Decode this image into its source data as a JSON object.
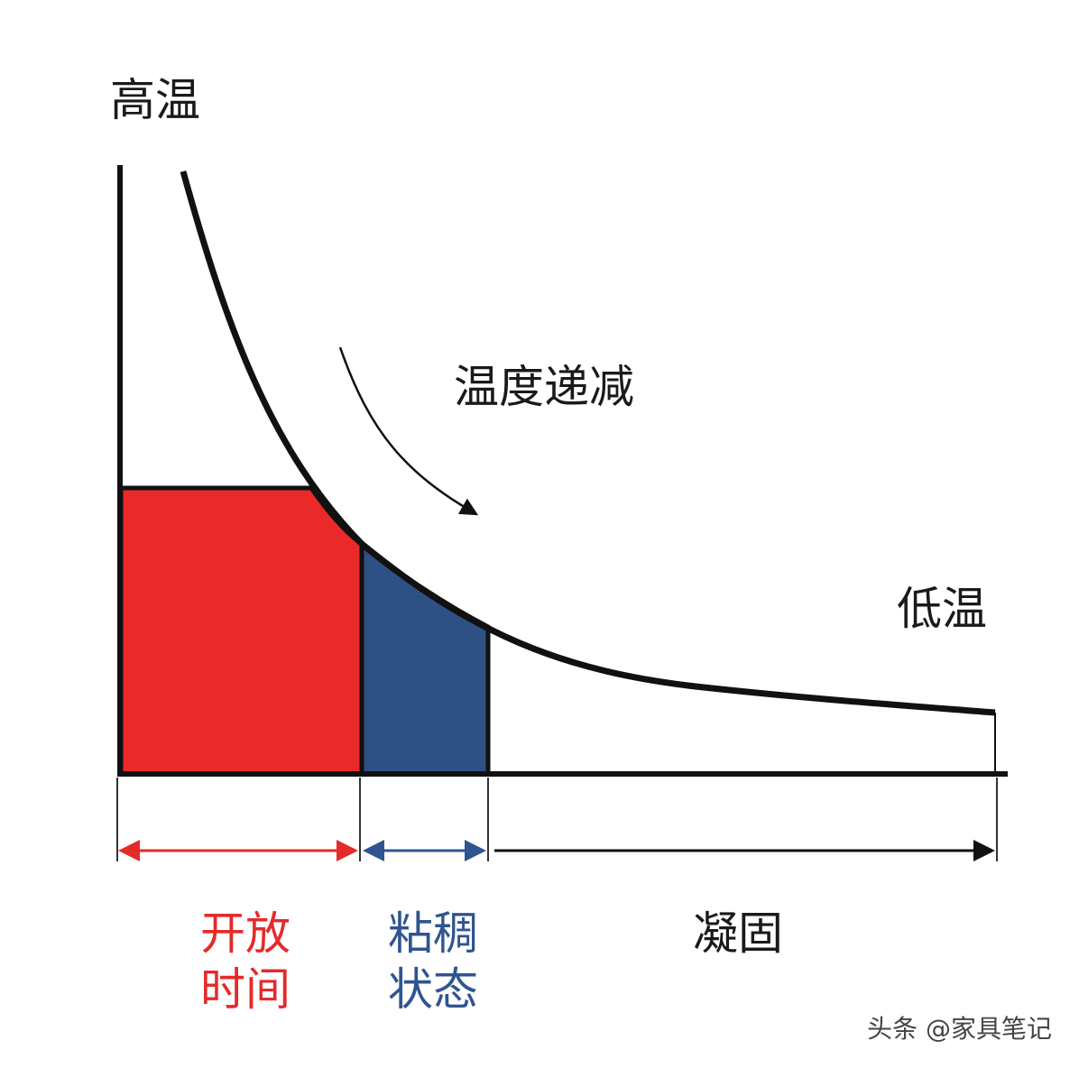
{
  "labels": {
    "high_temp": "高温",
    "decreasing": "温度递减",
    "low_temp": "低温"
  },
  "phases": [
    {
      "lines": [
        "开放",
        "时间"
      ]
    },
    {
      "lines": [
        "粘稠",
        "状态"
      ]
    },
    {
      "lines": [
        "凝固"
      ]
    }
  ],
  "watermark": "头条 @家具笔记"
}
